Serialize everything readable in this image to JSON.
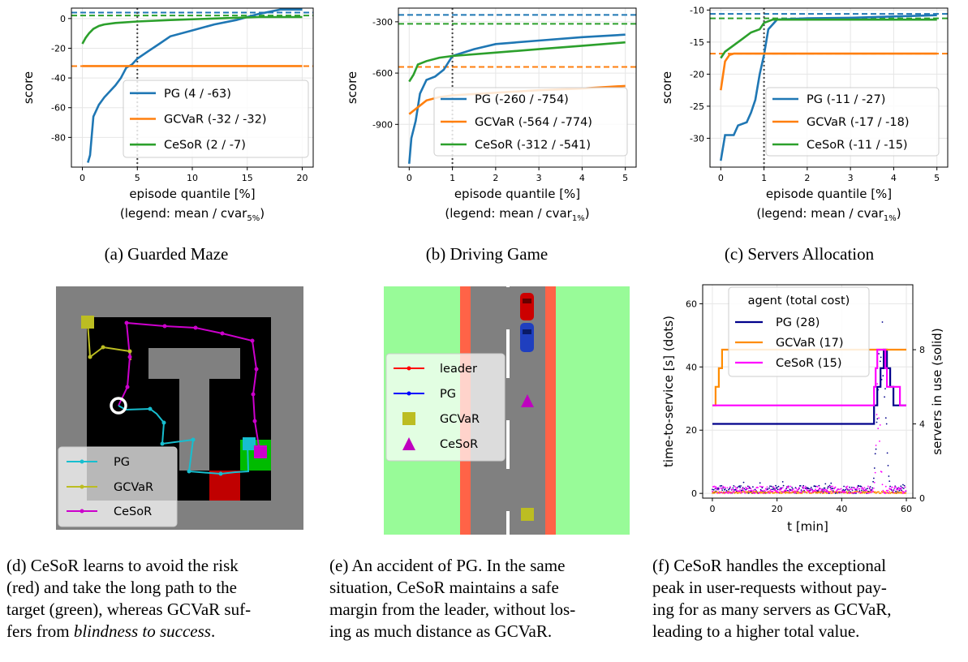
{
  "colors": {
    "pg": "#1f77b4",
    "gcvar": "#ff7f0e",
    "cesor": "#2ca02c"
  },
  "chart_data": [
    {
      "type": "line",
      "xlabel": "episode quantile [%]",
      "xlabel2": "(legend: mean / cvar",
      "xlabel2_sub": "5%",
      "xlabel2_end": ")",
      "ylabel": "score",
      "xlim": [
        -1,
        21
      ],
      "ylim": [
        -100,
        7
      ],
      "xticks": [
        0,
        5,
        10,
        15,
        20
      ],
      "yticks": [
        0,
        -20,
        -40,
        -60,
        -80
      ],
      "alpha": 5,
      "series": [
        {
          "name": "PG (4 / -63)",
          "color": "#1f77b4",
          "mean": 4,
          "x": [
            0.5,
            0.7,
            1,
            1.5,
            2,
            3,
            3.5,
            4,
            4.5,
            5,
            6,
            7,
            8,
            10,
            12,
            14,
            16,
            18,
            20
          ],
          "y": [
            -97,
            -92,
            -66,
            -58,
            -53,
            -45,
            -40,
            -33,
            -31,
            -27,
            -22,
            -17,
            -12,
            -8,
            -4,
            -1,
            3,
            6,
            6
          ]
        },
        {
          "name": "GCVaR (-32 / -32)",
          "color": "#ff7f0e",
          "mean": -32,
          "x": [
            0,
            20
          ],
          "y": [
            -32,
            -32
          ]
        },
        {
          "name": "CeSoR (2 / -7)",
          "color": "#2ca02c",
          "mean": 2,
          "x": [
            0,
            0.3,
            0.6,
            1,
            1.5,
            2,
            3,
            5,
            8,
            12,
            16,
            20
          ],
          "y": [
            -17,
            -13,
            -10,
            -7,
            -5,
            -4,
            -3,
            -2,
            -1,
            0,
            1,
            1
          ]
        }
      ],
      "caption": "(a) Guarded Maze"
    },
    {
      "type": "line",
      "xlabel": "episode quantile [%]",
      "xlabel2": "(legend: mean / cvar",
      "xlabel2_sub": "1%",
      "xlabel2_end": ")",
      "ylabel": "score",
      "xlim": [
        -0.25,
        5.25
      ],
      "ylim": [
        -1150,
        -220
      ],
      "xticks": [
        0,
        1,
        2,
        3,
        4,
        5
      ],
      "yticks": [
        -300,
        -600,
        -900
      ],
      "alpha": 1,
      "series": [
        {
          "name": "PG (-260 / -754)",
          "color": "#1f77b4",
          "mean": -260,
          "x": [
            0,
            0.05,
            0.15,
            0.25,
            0.4,
            0.6,
            0.8,
            1,
            1.5,
            2,
            3,
            4,
            5
          ],
          "y": [
            -1130,
            -980,
            -880,
            -720,
            -640,
            -620,
            -580,
            -500,
            -460,
            -430,
            -410,
            -390,
            -375
          ]
        },
        {
          "name": "GCVaR (-564 / -774)",
          "color": "#ff7f0e",
          "mean": -564,
          "x": [
            0,
            0.2,
            0.4,
            0.7,
            1,
            2,
            3,
            4,
            5
          ],
          "y": [
            -840,
            -800,
            -760,
            -740,
            -730,
            -715,
            -700,
            -690,
            -675
          ]
        },
        {
          "name": "CeSoR (-312 / -541)",
          "color": "#2ca02c",
          "mean": -312,
          "x": [
            0,
            0.1,
            0.2,
            0.4,
            0.7,
            1,
            2,
            3,
            4,
            5
          ],
          "y": [
            -650,
            -610,
            -550,
            -530,
            -510,
            -500,
            -480,
            -460,
            -440,
            -420
          ]
        }
      ],
      "caption": "(b) Driving Game"
    },
    {
      "type": "line",
      "xlabel": "episode quantile [%]",
      "xlabel2": "(legend: mean / cvar",
      "xlabel2_sub": "1%",
      "xlabel2_end": ")",
      "ylabel": "score",
      "xlim": [
        -0.25,
        5.25
      ],
      "ylim": [
        -34.5,
        -9.7
      ],
      "xticks": [
        0,
        1,
        2,
        3,
        4,
        5
      ],
      "yticks": [
        -10,
        -15,
        -20,
        -25,
        -30
      ],
      "alpha": 1,
      "series": [
        {
          "name": "PG (-11 / -27)",
          "color": "#1f77b4",
          "mean": -10.6,
          "x": [
            0,
            0.1,
            0.3,
            0.4,
            0.6,
            0.7,
            0.8,
            0.9,
            1,
            1.1,
            1.3,
            2,
            3,
            4,
            5
          ],
          "y": [
            -33.5,
            -29.5,
            -29.5,
            -28,
            -27.5,
            -26,
            -24,
            -20,
            -17,
            -13,
            -11.5,
            -11.3,
            -11.2,
            -11,
            -10.8
          ]
        },
        {
          "name": "GCVaR (-17 / -18)",
          "color": "#ff7f0e",
          "mean": -16.8,
          "x": [
            0,
            0.1,
            0.2,
            0.3,
            5
          ],
          "y": [
            -22.5,
            -18,
            -17,
            -16.8,
            -16.8
          ]
        },
        {
          "name": "CeSoR (-11 / -15)",
          "color": "#2ca02c",
          "mean": -11.3,
          "x": [
            0,
            0.1,
            0.3,
            0.5,
            0.7,
            0.9,
            1,
            1.2,
            2,
            5
          ],
          "y": [
            -17.5,
            -16.5,
            -15.5,
            -14.5,
            -13.5,
            -13,
            -12,
            -11.5,
            -11.5,
            -11.5
          ]
        }
      ],
      "caption": "(c) Servers Allocation"
    },
    {
      "type": "line",
      "xlabel": "t [min]",
      "ylabel": "time-to-service [s] (dots)",
      "ylabel_right": "servers in use (solid)",
      "xlim": [
        -3,
        62
      ],
      "ylim": [
        -1.5,
        66
      ],
      "ylim_right": [
        0,
        11.5
      ],
      "xticks": [
        0,
        20,
        40,
        60
      ],
      "yticks": [
        0,
        20,
        40,
        60
      ],
      "yticks_right": [
        0,
        4,
        8
      ],
      "legend_title": "agent (total cost)",
      "series": [
        {
          "name": "PG (28)",
          "color": "#00008b",
          "servers_x": [
            0,
            49.5,
            50,
            51,
            52,
            53,
            54,
            55,
            56
          ],
          "servers_y": [
            4,
            4,
            5,
            6,
            7,
            8,
            7,
            6,
            5
          ]
        },
        {
          "name": "GCVaR (17)",
          "color": "#ff8c00",
          "servers_x": [
            0,
            1,
            2,
            3,
            60
          ],
          "servers_y": [
            5,
            6,
            7,
            8,
            8
          ]
        },
        {
          "name": "CeSoR (15)",
          "color": "#ff00ff",
          "servers_x": [
            0,
            49,
            50,
            50.5,
            51,
            53,
            53.5,
            54,
            58
          ],
          "servers_y": [
            5,
            5,
            6,
            7,
            8,
            8,
            7,
            6,
            5
          ]
        }
      ]
    }
  ],
  "panels": {
    "d": {
      "legend": [
        "PG",
        "GCVaR",
        "CeSoR"
      ],
      "caption_lines": [
        "(d) CeSoR learns to avoid the risk",
        "(red) and take the long path to the",
        "target (green), whereas GCVaR suf-"
      ],
      "caption_last_a": "fers from ",
      "caption_last_em": "blindness to success",
      "caption_last_b": "."
    },
    "e": {
      "legend": [
        "leader",
        "PG",
        "GCVaR",
        "CeSoR"
      ],
      "caption_lines": [
        "(e) An accident of PG. In the same",
        "situation, CeSoR maintains a safe",
        "margin from the leader, without los-",
        "ing as much distance as GCVaR."
      ]
    },
    "f": {
      "caption_lines": [
        "(f) CeSoR handles the exceptional",
        "peak in user-requests without pay-",
        "ing for as many servers as GCVaR,",
        "leading to a higher total value."
      ]
    }
  }
}
